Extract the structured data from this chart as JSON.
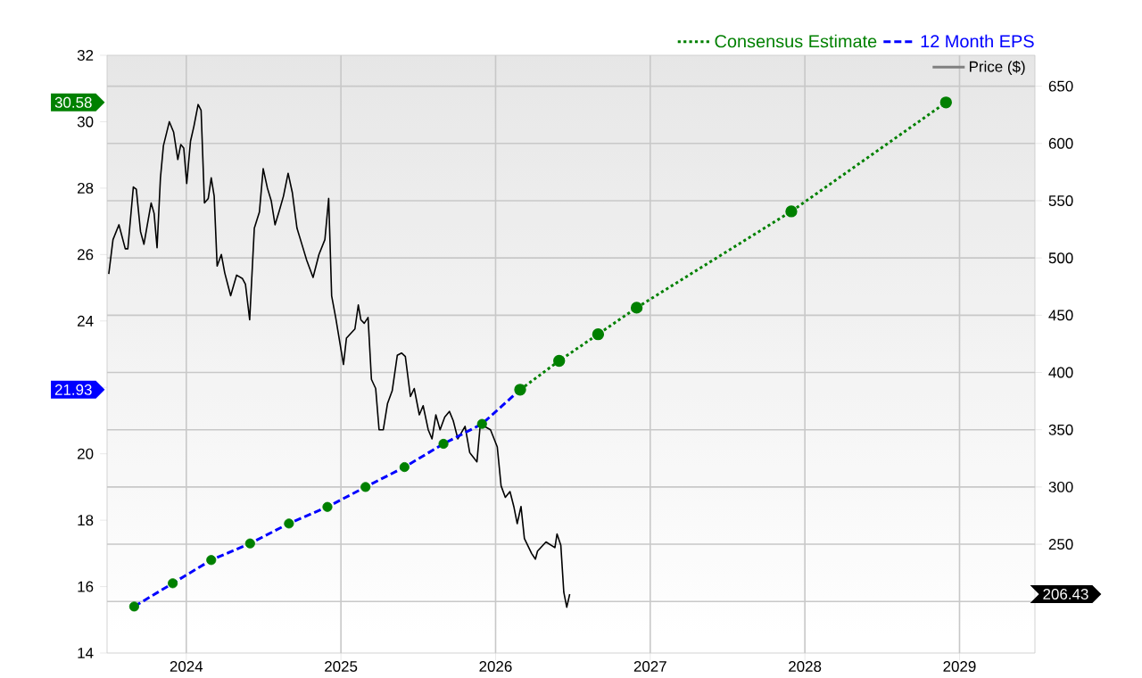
{
  "chart_data": {
    "type": "line",
    "xlim": [
      "2023-06-28",
      "2029-06-28"
    ],
    "xticks": [
      "2024",
      "2025",
      "2026",
      "2027",
      "2028",
      "2029"
    ],
    "ylim": [
      14,
      32
    ],
    "yticks": [
      14,
      16,
      18,
      20,
      {
        "value": 22,
        "label": null
      },
      24,
      26,
      28,
      30,
      32
    ],
    "y2lim": [
      155,
      677
    ],
    "y2ticks": [
      {
        "value": 200,
        "label": null
      },
      250,
      300,
      350,
      400,
      450,
      500,
      550,
      600,
      650
    ],
    "grid": true,
    "legend": "top right",
    "annotations": [
      "30.58",
      "21.93",
      "206.43"
    ],
    "series": [
      {
        "name": "Consensus Estimate",
        "color": "#008000",
        "line_style": "dotted",
        "marker": "circle",
        "x": [
          "2026-02-28",
          "2026-05-31",
          "2026-08-31",
          "2026-11-30",
          "2027-11-30",
          "2028-11-30"
        ],
        "values": [
          21.93,
          22.8,
          23.6,
          24.4,
          27.3,
          30.58
        ]
      },
      {
        "name": "12 Month EPS",
        "color": "#0000ff",
        "line_style": "dashed",
        "marker": "none",
        "x": [
          "2023-08-31",
          "2023-11-30",
          "2024-02-29",
          "2024-05-31",
          "2024-08-31",
          "2024-11-30",
          "2025-02-28",
          "2025-05-31",
          "2025-08-31",
          "2025-11-30",
          "2026-02-28"
        ],
        "values": [
          15.4,
          16.1,
          16.8,
          17.3,
          17.9,
          18.4,
          19.0,
          19.6,
          20.3,
          20.9,
          21.93
        ]
      },
      {
        "type": "scatter",
        "color": "#008000",
        "marker": "circle",
        "x": [
          "2023-08-31",
          "2023-11-30",
          "2024-02-29",
          "2024-05-31",
          "2024-08-31",
          "2024-11-30",
          "2025-02-28",
          "2025-05-31",
          "2025-08-31",
          "2025-11-30"
        ],
        "values": [
          15.4,
          16.1,
          16.8,
          17.3,
          17.9,
          18.4,
          19.0,
          19.6,
          20.3,
          20.9
        ]
      },
      {
        "name": "Price ($)",
        "axis": "y2",
        "color": "#000000",
        "line_style": "solid",
        "marker": "none",
        "x": [
          "2023-07-02",
          "2023-07-12",
          "2023-07-26",
          "2023-08-10",
          "2023-08-16",
          "2023-08-29",
          "2023-09-05",
          "2023-09-15",
          "2023-09-23",
          "2023-10-10",
          "2023-10-17",
          "2023-10-24",
          "2023-11-01",
          "2023-11-08",
          "2023-11-22",
          "2023-12-02",
          "2023-12-12",
          "2023-12-19",
          "2023-12-26",
          "2024-01-02",
          "2024-01-11",
          "2024-01-19",
          "2024-01-29",
          "2024-02-05",
          "2024-02-13",
          "2024-02-22",
          "2024-02-29",
          "2024-03-07",
          "2024-03-14",
          "2024-03-24",
          "2024-04-01",
          "2024-04-15",
          "2024-04-29",
          "2024-05-13",
          "2024-05-20",
          "2024-05-30",
          "2024-06-10",
          "2024-06-22",
          "2024-07-01",
          "2024-07-11",
          "2024-07-20",
          "2024-07-29",
          "2024-08-08",
          "2024-08-18",
          "2024-08-29",
          "2024-09-08",
          "2024-09-19",
          "2024-10-03",
          "2024-10-12",
          "2024-10-27",
          "2024-11-10",
          "2024-11-24",
          "2024-12-03",
          "2024-12-10",
          "2024-12-20",
          "2025-01-07",
          "2025-01-14",
          "2025-02-03",
          "2025-02-11",
          "2025-02-17",
          "2025-02-25",
          "2025-03-06",
          "2025-03-14",
          "2025-03-24",
          "2025-04-01",
          "2025-04-11",
          "2025-04-21",
          "2025-05-02",
          "2025-05-14",
          "2025-05-24",
          "2025-06-02",
          "2025-06-14",
          "2025-06-23",
          "2025-07-05",
          "2025-07-14",
          "2025-07-26",
          "2025-08-04",
          "2025-08-13",
          "2025-08-23",
          "2025-09-03",
          "2025-09-14",
          "2025-09-23",
          "2025-10-04",
          "2025-10-21",
          "2025-11-01",
          "2025-11-18",
          "2025-11-26",
          "2025-12-20",
          "2026-01-05",
          "2026-01-14",
          "2026-01-24",
          "2026-02-04",
          "2026-02-13",
          "2026-02-21",
          "2026-03-02",
          "2026-03-10",
          "2026-03-27",
          "2026-04-05",
          "2026-04-10",
          "2026-04-30",
          "2026-05-21",
          "2026-05-26",
          "2026-06-04",
          "2026-06-11",
          "2026-06-18",
          "2026-06-25"
        ],
        "values": [
          486,
          516,
          529,
          508,
          508,
          562,
          560,
          523,
          512,
          548,
          539,
          509,
          570,
          598,
          619,
          610,
          586,
          599,
          596,
          565,
          602,
          615,
          634,
          629,
          548,
          552,
          570,
          554,
          493,
          503,
          487,
          467,
          485,
          482,
          477,
          446,
          526,
          540,
          578,
          561,
          550,
          529,
          541,
          554,
          574,
          557,
          526,
          509,
          498,
          483,
          503,
          516,
          552,
          467,
          447,
          407,
          430,
          438,
          459,
          446,
          443,
          448,
          394,
          386,
          350,
          350,
          373,
          384,
          415,
          417,
          414,
          379,
          386,
          363,
          371,
          350,
          342,
          363,
          350,
          361,
          366,
          358,
          342,
          353,
          330,
          322,
          355,
          350,
          335,
          301,
          291,
          296,
          283,
          268,
          283,
          255,
          242,
          237,
          244,
          252,
          247,
          259,
          249,
          208,
          195,
          206.43
        ]
      }
    ]
  }
}
